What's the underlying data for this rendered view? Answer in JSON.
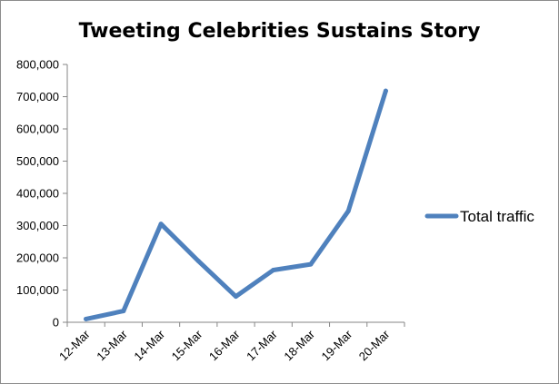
{
  "chart_data": {
    "type": "line",
    "title": "Tweeting Celebrities Sustains Story",
    "categories": [
      "12-Mar",
      "13-Mar",
      "14-Mar",
      "15-Mar",
      "16-Mar",
      "17-Mar",
      "18-Mar",
      "19-Mar",
      "20-Mar"
    ],
    "series": [
      {
        "name": "Total traffic",
        "values": [
          10000,
          35000,
          305000,
          190000,
          80000,
          162000,
          180000,
          345000,
          718000
        ],
        "color": "#4f81bd"
      }
    ],
    "y_ticks": [
      "0",
      "100,000",
      "200,000",
      "300,000",
      "400,000",
      "500,000",
      "600,000",
      "700,000",
      "800,000"
    ],
    "ylim": [
      0,
      800000
    ],
    "grid": false,
    "legend_position": "right"
  }
}
